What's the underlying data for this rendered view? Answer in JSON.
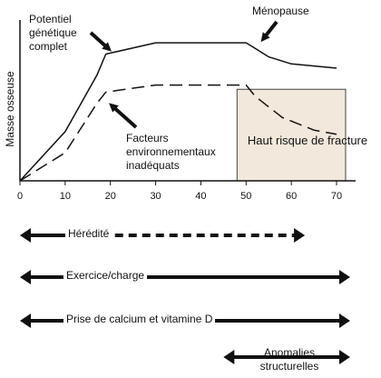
{
  "chart_data": {
    "type": "line",
    "ylabel": "Masse osseuse",
    "xlabel": "",
    "x_ticks": [
      "0",
      "10",
      "20",
      "30",
      "40",
      "50",
      "60",
      "70"
    ],
    "xlim": [
      0,
      70
    ],
    "ylim": [
      0,
      100
    ],
    "series": [
      {
        "style": "solid",
        "x": [
          0,
          10,
          17,
          19,
          30,
          50,
          52,
          55,
          60,
          70
        ],
        "y": [
          0,
          35,
          75,
          90,
          98,
          98,
          94,
          88,
          83,
          80
        ]
      },
      {
        "style": "dashed",
        "x": [
          0,
          10,
          17,
          19,
          30,
          50,
          52,
          58,
          65,
          70
        ],
        "y": [
          0,
          20,
          55,
          63,
          68,
          68,
          60,
          45,
          36,
          33
        ]
      }
    ],
    "annotations": {
      "potential": "Potentiel génétique complet",
      "menopause": "Ménopause",
      "factors": "Facteurs environnementaux inadéquats",
      "risk_zone": "Haut risque de fracture"
    },
    "risk_zone": {
      "x_start": 48,
      "x_end": 72,
      "y_start": 0,
      "y_end": 65,
      "color": "#f2e8db"
    },
    "factors": [
      {
        "label": "Hérédité",
        "x_start": 0,
        "x_end": 63,
        "solid_until": 18,
        "style": "partial-dashed"
      },
      {
        "label": "Exercice/charge",
        "x_start": 0,
        "x_end": 73,
        "style": "solid"
      },
      {
        "label": "Prise de calcium et vitamine D",
        "x_start": 0,
        "x_end": 73,
        "style": "solid"
      },
      {
        "label": "Anomalies structurelles",
        "x_start": 45,
        "x_end": 73,
        "style": "solid"
      }
    ]
  }
}
